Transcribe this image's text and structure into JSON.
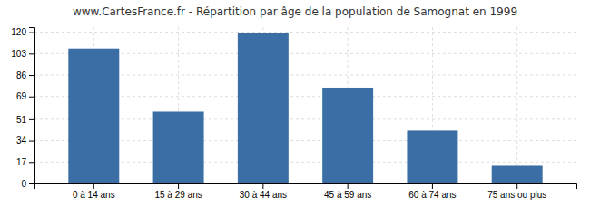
{
  "chart_data": {
    "type": "bar",
    "title": "www.CartesFrance.fr - Répartition par âge de la population de Samognat en 1999",
    "categories": [
      "0 à 14 ans",
      "15 à 29 ans",
      "30 à 44 ans",
      "45 à 59 ans",
      "60 à 74 ans",
      "75 ans ou plus"
    ],
    "values": [
      107,
      57,
      119,
      76,
      42,
      14
    ],
    "color": "#3a6ea5",
    "ylim": [
      0,
      124
    ],
    "yticks": [
      0,
      17,
      34,
      51,
      69,
      86,
      103,
      120
    ],
    "grid": true
  }
}
